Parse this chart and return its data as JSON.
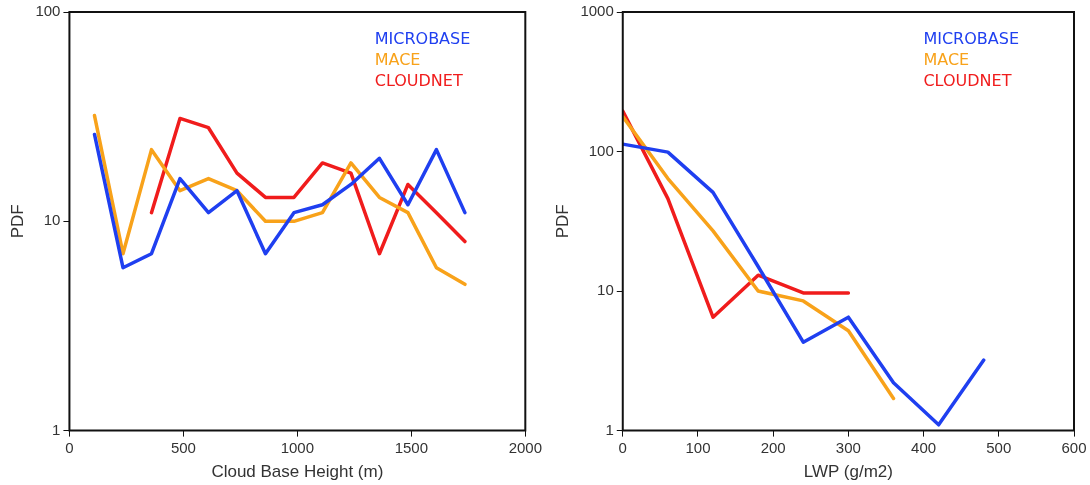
{
  "chart_data": [
    {
      "type": "line",
      "xlabel": "Cloud Base Height (m)",
      "ylabel": "PDF",
      "log": "y",
      "xlim": [
        0,
        2000
      ],
      "xticks": [
        0,
        500,
        1000,
        1500,
        2000
      ],
      "ylim": [
        1,
        100
      ],
      "yticks": [
        1,
        10,
        100
      ],
      "grid": false,
      "legend": "top right",
      "marker": "none",
      "line_style": "solid",
      "series": [
        {
          "name": "MICROBASE",
          "color": "#1f3ff0",
          "x": [
            110,
            235,
            360,
            485,
            610,
            735,
            860,
            985,
            1110,
            1235,
            1360,
            1485,
            1610,
            1735
          ],
          "values": [
            26,
            6,
            7,
            16,
            11,
            14,
            7,
            11,
            12,
            15,
            20,
            12,
            22,
            11
          ]
        },
        {
          "name": "MACE",
          "color": "#f8a21a",
          "x": [
            110,
            235,
            360,
            485,
            610,
            735,
            860,
            985,
            1110,
            1235,
            1360,
            1485,
            1610,
            1735
          ],
          "values": [
            32,
            7,
            22,
            14,
            16,
            14,
            10,
            10,
            11,
            19,
            13,
            11,
            6,
            5
          ]
        },
        {
          "name": "CLOUDNET",
          "color": "#f01c1c",
          "x": [
            360,
            485,
            610,
            735,
            860,
            985,
            1110,
            1235,
            1360,
            1485,
            1610,
            1735
          ],
          "values": [
            11,
            31,
            28,
            17,
            13,
            13,
            19,
            17,
            7,
            15,
            11,
            8
          ]
        }
      ]
    },
    {
      "type": "line",
      "xlabel": "LWP (g/m2)",
      "ylabel": "PDF",
      "log": "y",
      "xlim": [
        0,
        600
      ],
      "xticks": [
        0,
        100,
        200,
        300,
        400,
        500,
        600
      ],
      "ylim": [
        1,
        1000
      ],
      "yticks": [
        1,
        10,
        100,
        1000
      ],
      "grid": false,
      "legend": "top right",
      "marker": "none",
      "line_style": "solid",
      "series": [
        {
          "name": "MICROBASE",
          "color": "#1f3ff0",
          "x": [
            0,
            60,
            120,
            180,
            240,
            300,
            360,
            420,
            480
          ],
          "values": [
            113,
            99,
            51,
            15,
            4.3,
            6.5,
            2.2,
            1.1,
            3.2
          ]
        },
        {
          "name": "MACE",
          "color": "#f8a21a",
          "x": [
            0,
            60,
            120,
            180,
            240,
            300,
            360
          ],
          "values": [
            178,
            64,
            27,
            10,
            8.5,
            5.2,
            1.7
          ]
        },
        {
          "name": "CLOUDNET",
          "color": "#f01c1c",
          "x": [
            0,
            60,
            120,
            180,
            240,
            300
          ],
          "values": [
            195,
            46,
            6.5,
            13,
            9.7,
            9.7
          ]
        }
      ]
    }
  ]
}
